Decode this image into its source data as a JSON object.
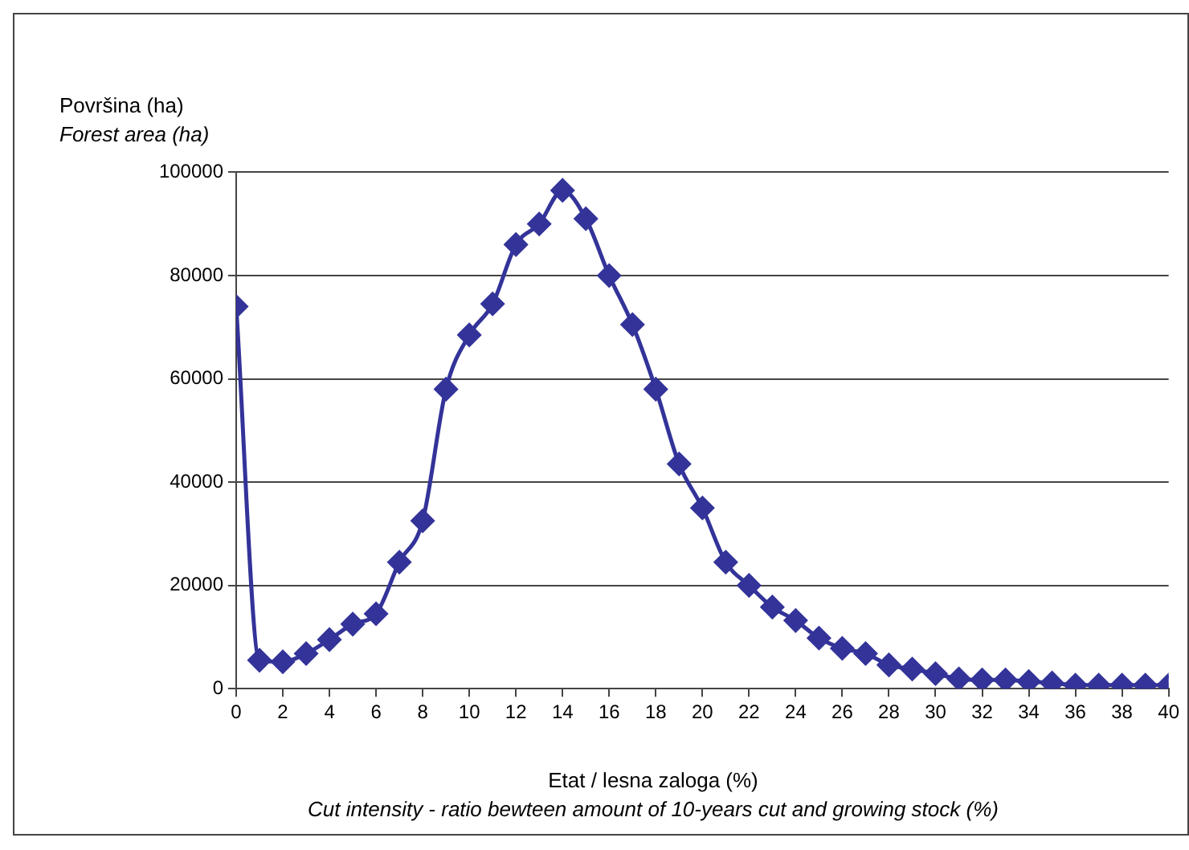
{
  "chart_data": {
    "type": "line",
    "ylabel": "Površina (ha)\nForest area (ha)",
    "xlabel": "Etat / lesna zaloga (%)\nCut intensity - ratio bewteen amount of 10-years cut and growing stock (%)",
    "x": [
      0,
      1,
      2,
      3,
      4,
      5,
      6,
      7,
      8,
      9,
      10,
      11,
      12,
      13,
      14,
      15,
      16,
      17,
      18,
      19,
      20,
      21,
      22,
      23,
      24,
      25,
      26,
      27,
      28,
      29,
      30,
      31,
      32,
      33,
      34,
      35,
      36,
      37,
      38,
      39,
      40
    ],
    "series": [
      {
        "color": "#333399",
        "values": [
          74000,
          5500,
          5200,
          6800,
          9500,
          12500,
          14500,
          24500,
          32500,
          58000,
          68500,
          74500,
          86000,
          90000,
          96500,
          91000,
          80000,
          70500,
          58000,
          43500,
          35000,
          24500,
          20000,
          15800,
          13200,
          9800,
          7800,
          6800,
          4600,
          3800,
          2900,
          1900,
          1700,
          1700,
          1400,
          1100,
          700,
          700,
          700,
          700,
          700
        ]
      }
    ],
    "xlim": [
      0,
      40
    ],
    "xticks": [
      0,
      2,
      4,
      6,
      8,
      10,
      12,
      14,
      16,
      18,
      20,
      22,
      24,
      26,
      28,
      30,
      32,
      34,
      36,
      38,
      40
    ],
    "ylim": [
      0,
      100000
    ],
    "yticks": [
      0,
      20000,
      40000,
      60000,
      80000,
      100000
    ],
    "grid": "y",
    "legend": false,
    "marker": "diamond",
    "line_style": "solid"
  }
}
